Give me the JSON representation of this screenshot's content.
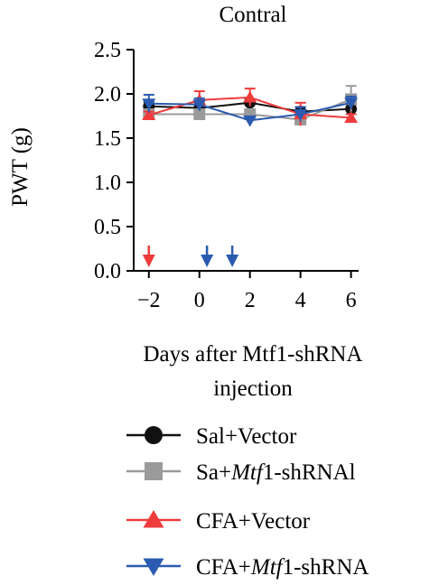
{
  "chart_data": {
    "type": "line",
    "title": "Contral",
    "ylabel": "PWT (g)",
    "xlabel_lines": [
      "Days after Mtf1-shRNA",
      "injection"
    ],
    "xlim": [
      -2.6,
      6.3
    ],
    "ylim": [
      0,
      2.5
    ],
    "xticks": [
      -2,
      0,
      2,
      4,
      6
    ],
    "xtick_labels": [
      "−2",
      "0",
      "2",
      "4",
      "6"
    ],
    "yticks": [
      0,
      0.5,
      1,
      1.5,
      2,
      2.5
    ],
    "ytick_labels": [
      "0.0",
      "0.5",
      "1.0",
      "1.5",
      "2.0",
      "2.5"
    ],
    "grid": false,
    "legend_position": "bottom",
    "series": [
      {
        "name": "Sal+Vector",
        "name_parts": [
          {
            "text": "Sal+Vector",
            "italic": false
          }
        ],
        "color": "#111111",
        "marker": "circle",
        "x": [
          -2,
          0,
          2,
          4,
          6
        ],
        "y": [
          1.86,
          1.84,
          1.9,
          1.8,
          1.83
        ],
        "err": [
          0.05,
          0.04,
          0.04,
          0.05,
          0.05
        ]
      },
      {
        "name": "Sa+Mtf1-shRNAl",
        "name_parts": [
          {
            "text": "Sa+",
            "italic": false
          },
          {
            "text": "Mtf",
            "italic": true
          },
          {
            "text": "1-shRNAl",
            "italic": false
          }
        ],
        "color": "#9a9a9a",
        "marker": "square",
        "x": [
          -2,
          0,
          2,
          4,
          6
        ],
        "y": [
          1.77,
          1.77,
          1.77,
          1.71,
          1.94
        ],
        "err": [
          0.04,
          0.04,
          0.05,
          0.04,
          0.15
        ]
      },
      {
        "name": "CFA+Vector",
        "name_parts": [
          {
            "text": "CFA+Vector",
            "italic": false
          }
        ],
        "color": "#ef3b3b",
        "marker": "triangle-up",
        "x": [
          -2,
          0,
          2,
          4,
          6
        ],
        "y": [
          1.76,
          1.93,
          1.96,
          1.77,
          1.73
        ],
        "err": [
          0.04,
          0.1,
          0.1,
          0.13,
          0.04
        ]
      },
      {
        "name": "CFA+Mtf1-shRNA",
        "name_parts": [
          {
            "text": "CFA+",
            "italic": false
          },
          {
            "text": "Mtf",
            "italic": true
          },
          {
            "text": "1-shRNA",
            "italic": false
          }
        ],
        "color": "#2a5bb0",
        "marker": "triangle-down",
        "x": [
          -2,
          0,
          2,
          4,
          6
        ],
        "y": [
          1.89,
          1.88,
          1.7,
          1.77,
          1.9
        ],
        "err": [
          0.1,
          0.07,
          0.04,
          0.08,
          0.07
        ]
      }
    ],
    "annotations": [
      {
        "type": "arrow-down",
        "x": -2.0,
        "color": "#ef3b3b"
      },
      {
        "type": "arrow-down",
        "x": 0.3,
        "color": "#2a5bb0"
      },
      {
        "type": "arrow-down",
        "x": 1.3,
        "color": "#2a5bb0"
      }
    ]
  }
}
